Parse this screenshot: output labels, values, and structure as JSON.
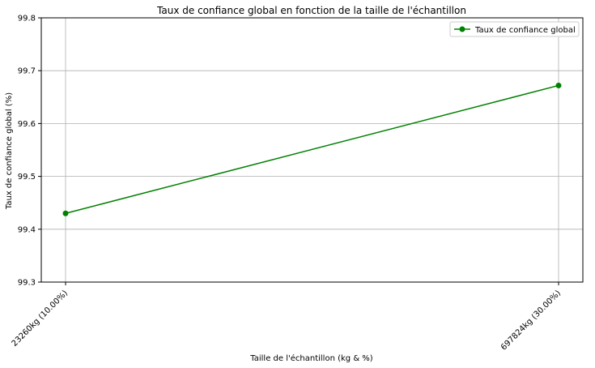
{
  "chart_data": {
    "type": "line",
    "title": "Taux de confiance global en fonction de la taille de l'échantillon",
    "xlabel": "Taille de l'échantillon (kg & %)",
    "ylabel": "Taux de confiance global (%)",
    "categories": [
      "23260kg (10.00%)",
      "697824kg (30.00%)"
    ],
    "series": [
      {
        "name": "Taux de confiance global",
        "values": [
          99.43,
          99.672
        ],
        "color": "#008000",
        "marker": "circle"
      }
    ],
    "ylim": [
      99.3,
      99.8
    ],
    "yticks": [
      "99.3",
      "99.4",
      "99.5",
      "99.6",
      "99.7",
      "99.8"
    ],
    "grid": true,
    "legend_position": "top-right"
  }
}
